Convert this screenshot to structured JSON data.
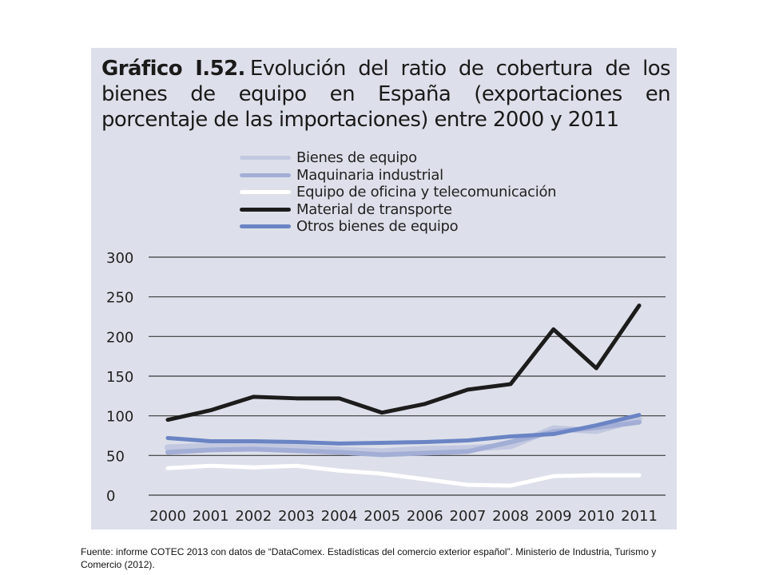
{
  "chart_data": {
    "type": "line",
    "title_number": "Gráfico I.52.",
    "title": "Evolución del ratio de cobertura de los bienes de equipo en España (exportaciones en porcentaje de las importaciones) entre 2000 y 2011",
    "categories": [
      "2000",
      "2001",
      "2002",
      "2003",
      "2004",
      "2005",
      "2006",
      "2007",
      "2008",
      "2009",
      "2010",
      "2011"
    ],
    "ylim": [
      0,
      300
    ],
    "yticks": [
      0,
      50,
      100,
      150,
      200,
      250,
      300
    ],
    "grid": true,
    "legend_position": "top",
    "series": [
      {
        "name": "Bienes de equipo",
        "color": "#c2c8e0",
        "values": [
          60,
          62,
          63,
          60,
          57,
          55,
          58,
          59,
          62,
          84,
          81,
          96
        ]
      },
      {
        "name": "Maquinaria industrial",
        "color": "#a3aed6",
        "values": [
          54,
          57,
          58,
          56,
          54,
          51,
          53,
          55,
          67,
          80,
          85,
          92
        ]
      },
      {
        "name": "Equipo de oficina y telecomunicación",
        "color": "#ffffff",
        "values": [
          34,
          37,
          35,
          37,
          31,
          27,
          20,
          13,
          12,
          24,
          25,
          25
        ]
      },
      {
        "name": "Material de transporte",
        "color": "#1c1c1c",
        "values": [
          95,
          107,
          124,
          122,
          122,
          104,
          115,
          133,
          140,
          209,
          160,
          239
        ]
      },
      {
        "name": "Otros bienes de equipo",
        "color": "#6a84c4",
        "values": [
          72,
          68,
          68,
          67,
          65,
          66,
          67,
          69,
          74,
          77,
          88,
          101
        ]
      }
    ]
  },
  "source_note": "Fuente: informe COTEC 2013  con datos de “DataComex. Estadísticas del comercio exterior español”. Ministerio de Industria, Turismo y Comercio (2012)."
}
